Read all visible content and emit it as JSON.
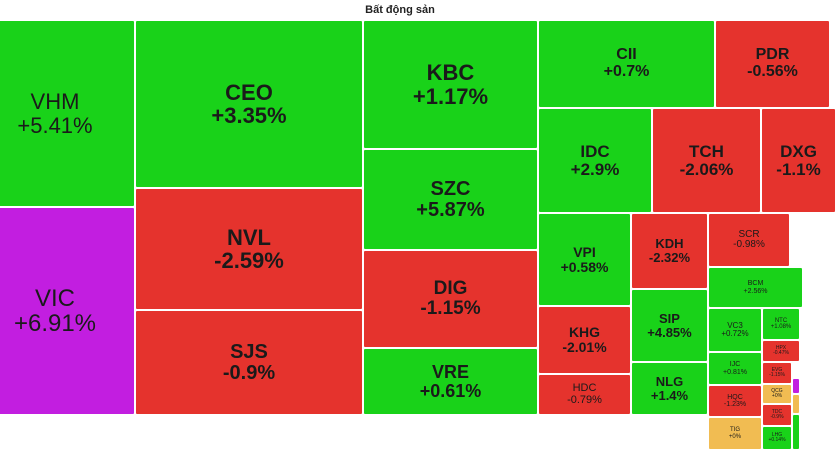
{
  "title": "Bất động sản",
  "colors": {
    "up": "#19d219",
    "down": "#e5332d",
    "ceiling": "#c21ee0",
    "reference": "#f1bc52"
  },
  "tiles": [
    {
      "symbol": "VHM",
      "change": "+5.41%",
      "color": "up"
    },
    {
      "symbol": "VIC",
      "change": "+6.91%",
      "color": "ceiling"
    },
    {
      "symbol": "CEO",
      "change": "+3.35%",
      "color": "up"
    },
    {
      "symbol": "NVL",
      "change": "-2.59%",
      "color": "down"
    },
    {
      "symbol": "SJS",
      "change": "-0.9%",
      "color": "down"
    },
    {
      "symbol": "KBC",
      "change": "+1.17%",
      "color": "up"
    },
    {
      "symbol": "SZC",
      "change": "+5.87%",
      "color": "up"
    },
    {
      "symbol": "DIG",
      "change": "-1.15%",
      "color": "down"
    },
    {
      "symbol": "VRE",
      "change": "+0.61%",
      "color": "up"
    },
    {
      "symbol": "CII",
      "change": "+0.7%",
      "color": "up"
    },
    {
      "symbol": "PDR",
      "change": "-0.56%",
      "color": "down"
    },
    {
      "symbol": "IDC",
      "change": "+2.9%",
      "color": "up"
    },
    {
      "symbol": "TCH",
      "change": "-2.06%",
      "color": "down"
    },
    {
      "symbol": "DXG",
      "change": "-1.1%",
      "color": "down"
    },
    {
      "symbol": "VPI",
      "change": "+0.58%",
      "color": "up"
    },
    {
      "symbol": "KDH",
      "change": "-2.32%",
      "color": "down"
    },
    {
      "symbol": "SCR",
      "change": "-0.98%",
      "color": "down"
    },
    {
      "symbol": "BCM",
      "change": "+2.56%",
      "color": "up"
    },
    {
      "symbol": "KHG",
      "change": "-2.01%",
      "color": "down"
    },
    {
      "symbol": "SIP",
      "change": "+4.85%",
      "color": "up"
    },
    {
      "symbol": "HDC",
      "change": "-0.79%",
      "color": "down"
    },
    {
      "symbol": "NLG",
      "change": "+1.4%",
      "color": "up"
    },
    {
      "symbol": "VC3",
      "change": "+0.72%",
      "color": "up"
    },
    {
      "symbol": "NTC",
      "change": "+1.08%",
      "color": "up"
    },
    {
      "symbol": "IJC",
      "change": "+0.81%",
      "color": "up"
    },
    {
      "symbol": "HPX",
      "change": "-0.47%",
      "color": "down"
    },
    {
      "symbol": "EVG",
      "change": "-1.15%",
      "color": "down"
    },
    {
      "symbol": "HQC",
      "change": "-1.23%",
      "color": "down"
    },
    {
      "symbol": "QCG",
      "change": "+0%",
      "color": "reference"
    },
    {
      "symbol": "TIG",
      "change": "+0%",
      "color": "reference"
    },
    {
      "symbol": "TDC",
      "change": "-0.9%",
      "color": "down"
    },
    {
      "symbol": "LHG",
      "change": "+0.14%",
      "color": "up"
    }
  ]
}
